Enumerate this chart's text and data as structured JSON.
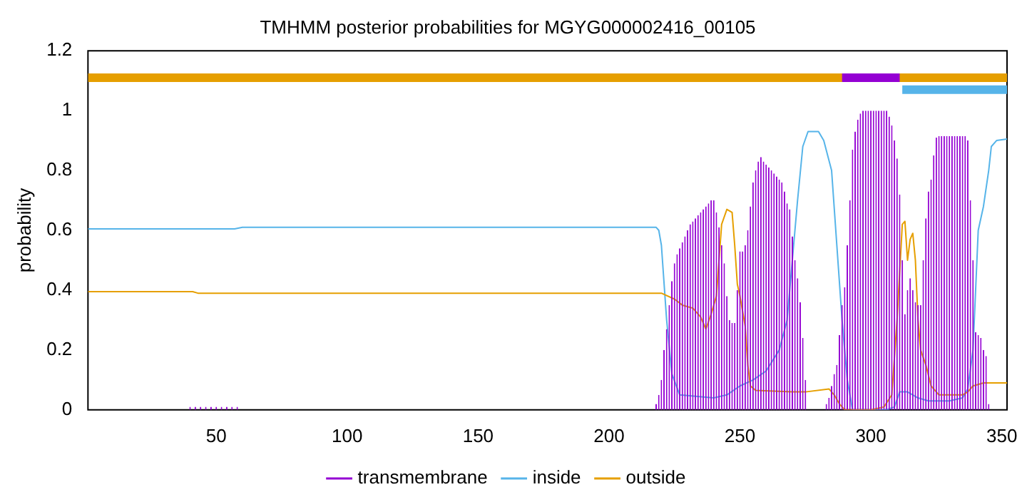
{
  "chart_data": {
    "type": "line",
    "title": "TMHMM posterior probabilities for MGYG000002416_00105",
    "ylabel": "probability",
    "xlim": [
      1,
      352
    ],
    "xticks": [
      50,
      100,
      150,
      200,
      250,
      300,
      350
    ],
    "ylim": [
      0,
      1.2
    ],
    "yticks": [
      0,
      0.2,
      0.4,
      0.6,
      0.8,
      1,
      1.2
    ],
    "grid": false,
    "legend": "bottom",
    "marker": "none",
    "line_style": "solid",
    "series": [
      {
        "name": "transmembrane",
        "type": "bar",
        "color": "#9400d3",
        "x": [
          40,
          42,
          44,
          46,
          48,
          50,
          52,
          54,
          56,
          58,
          218,
          219,
          220,
          221,
          222,
          223,
          224,
          225,
          226,
          227,
          228,
          229,
          230,
          231,
          232,
          233,
          234,
          235,
          236,
          237,
          238,
          239,
          240,
          241,
          242,
          243,
          244,
          245,
          246,
          247,
          248,
          249,
          250,
          251,
          252,
          253,
          254,
          255,
          256,
          257,
          258,
          259,
          260,
          261,
          262,
          263,
          264,
          265,
          266,
          267,
          268,
          269,
          270,
          271,
          272,
          273,
          274,
          275,
          283,
          284,
          285,
          286,
          287,
          288,
          289,
          290,
          291,
          292,
          293,
          294,
          295,
          296,
          297,
          298,
          299,
          300,
          301,
          302,
          303,
          304,
          305,
          306,
          307,
          308,
          309,
          310,
          311,
          312,
          313,
          314,
          315,
          316,
          317,
          318,
          319,
          320,
          321,
          322,
          323,
          324,
          325,
          326,
          327,
          328,
          329,
          330,
          331,
          332,
          333,
          334,
          335,
          336,
          337,
          338,
          339,
          340,
          341,
          342,
          343,
          344,
          345
        ],
        "values": [
          0.01,
          0.01,
          0.01,
          0.01,
          0.01,
          0.01,
          0.01,
          0.01,
          0.01,
          0.01,
          0.02,
          0.05,
          0.1,
          0.2,
          0.27,
          0.35,
          0.43,
          0.49,
          0.52,
          0.54,
          0.56,
          0.58,
          0.6,
          0.62,
          0.63,
          0.64,
          0.65,
          0.66,
          0.67,
          0.68,
          0.69,
          0.7,
          0.7,
          0.66,
          0.61,
          0.55,
          0.49,
          0.38,
          0.3,
          0.29,
          0.29,
          0.4,
          0.53,
          0.53,
          0.55,
          0.6,
          0.68,
          0.76,
          0.8,
          0.83,
          0.845,
          0.83,
          0.82,
          0.81,
          0.8,
          0.79,
          0.78,
          0.77,
          0.76,
          0.73,
          0.69,
          0.67,
          0.58,
          0.5,
          0.44,
          0.36,
          0.24,
          0.1,
          0.02,
          0.04,
          0.08,
          0.12,
          0.15,
          0.25,
          0.35,
          0.41,
          0.55,
          0.7,
          0.87,
          0.93,
          0.97,
          0.99,
          1,
          1,
          1,
          1,
          1,
          1,
          1,
          1,
          1,
          1,
          0.98,
          0.95,
          0.9,
          0.84,
          0.72,
          0.5,
          0.32,
          0.4,
          0.44,
          0.4,
          0.36,
          0.35,
          0.35,
          0.5,
          0.64,
          0.73,
          0.77,
          0.85,
          0.91,
          0.915,
          0.915,
          0.915,
          0.915,
          0.915,
          0.915,
          0.915,
          0.915,
          0.915,
          0.915,
          0.915,
          0.9,
          0.7,
          0.5,
          0.26,
          0.25,
          0.24,
          0.2,
          0.18,
          0.02
        ]
      },
      {
        "name": "inside",
        "color": "#56b4e9",
        "x": [
          1,
          57,
          60,
          218,
          219,
          220,
          222,
          224,
          227,
          240,
          245,
          250,
          255,
          260,
          265,
          268,
          270,
          272,
          274,
          276,
          280,
          282,
          285,
          287,
          289,
          291,
          293,
          306,
          309,
          311,
          314,
          318,
          322,
          330,
          335,
          337,
          339,
          341,
          343,
          345,
          346,
          348,
          352
        ],
        "values": [
          0.605,
          0.605,
          0.61,
          0.61,
          0.6,
          0.55,
          0.3,
          0.12,
          0.05,
          0.04,
          0.05,
          0.08,
          0.1,
          0.13,
          0.2,
          0.3,
          0.5,
          0.7,
          0.88,
          0.93,
          0.93,
          0.9,
          0.8,
          0.55,
          0.3,
          0.1,
          0,
          0,
          0.01,
          0.06,
          0.06,
          0.04,
          0.03,
          0.03,
          0.04,
          0.07,
          0.2,
          0.6,
          0.68,
          0.8,
          0.88,
          0.9,
          0.905
        ]
      },
      {
        "name": "outside",
        "color": "#e69f00",
        "x": [
          1,
          41,
          43,
          220,
          225,
          228,
          232,
          235,
          237,
          239,
          241,
          242,
          243,
          245,
          247,
          248,
          249,
          250,
          252,
          253,
          254,
          256,
          270,
          275,
          284,
          286,
          288,
          290,
          300,
          305,
          308,
          310,
          312,
          313,
          314,
          315,
          316,
          317,
          318,
          319,
          321,
          323,
          326,
          335,
          337,
          339,
          343,
          352
        ],
        "values": [
          0.395,
          0.395,
          0.39,
          0.39,
          0.37,
          0.35,
          0.34,
          0.31,
          0.27,
          0.32,
          0.38,
          0.5,
          0.62,
          0.67,
          0.66,
          0.55,
          0.42,
          0.38,
          0.28,
          0.15,
          0.08,
          0.065,
          0.06,
          0.06,
          0.07,
          0.05,
          0.02,
          0,
          0,
          0.01,
          0.05,
          0.3,
          0.62,
          0.63,
          0.5,
          0.57,
          0.59,
          0.5,
          0.3,
          0.2,
          0.15,
          0.08,
          0.05,
          0.05,
          0.06,
          0.08,
          0.09,
          0.09
        ]
      },
      {
        "type": "line",
        "color": "#e69f00",
        "x": [
          1,
          352
        ],
        "values": [
          1.11,
          1.11
        ]
      },
      {
        "type": "line",
        "color": "#9400d3",
        "x": [
          289,
          311
        ],
        "values": [
          1.11,
          1.11
        ]
      },
      {
        "type": "line",
        "color": "#56b4e9",
        "x": [
          312,
          352
        ],
        "values": [
          1.07,
          1.07
        ]
      }
    ]
  }
}
